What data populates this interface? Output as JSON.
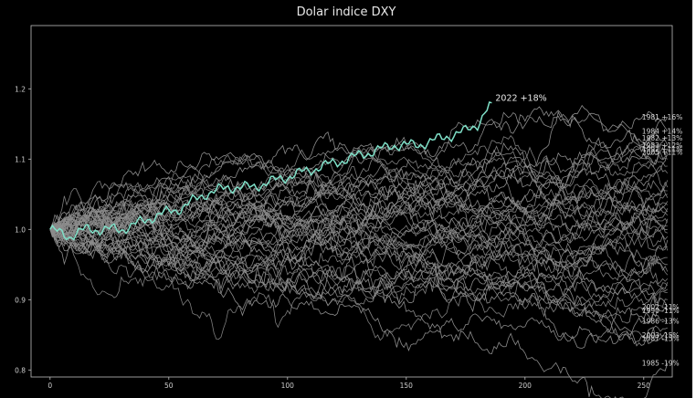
{
  "chart_data": {
    "type": "line",
    "title": "Dolar indice DXY",
    "xlabel": "",
    "ylabel": "",
    "xlim": [
      -8,
      262
    ],
    "ylim": [
      0.79,
      1.29
    ],
    "x_ticks": [
      0,
      50,
      100,
      150,
      200,
      250
    ],
    "y_ticks": [
      0.8,
      0.9,
      1.0,
      1.1,
      1.2
    ],
    "y_tick_labels": [
      "0.8",
      "0.9",
      "1.0",
      "1.1",
      "1.2"
    ],
    "grid": false,
    "background": "#000000",
    "line_color": "#8c8c8c",
    "highlight_color": "#7fe0c8",
    "highlight": {
      "year": "2022",
      "label": "2022   +18%",
      "end_x": 186,
      "end_y": 1.18,
      "anchors": [
        [
          0,
          1.0
        ],
        [
          8,
          0.99
        ],
        [
          15,
          1.0
        ],
        [
          22,
          1.0
        ],
        [
          30,
          1.0
        ],
        [
          38,
          1.01
        ],
        [
          45,
          1.02
        ],
        [
          55,
          1.03
        ],
        [
          65,
          1.05
        ],
        [
          75,
          1.06
        ],
        [
          85,
          1.06
        ],
        [
          95,
          1.07
        ],
        [
          105,
          1.08
        ],
        [
          115,
          1.09
        ],
        [
          125,
          1.1
        ],
        [
          135,
          1.11
        ],
        [
          145,
          1.12
        ],
        [
          155,
          1.12
        ],
        [
          165,
          1.13
        ],
        [
          175,
          1.14
        ],
        [
          180,
          1.15
        ],
        [
          186,
          1.18
        ]
      ]
    },
    "labeled_years": [
      {
        "label": "1981   +16%",
        "year": "1981",
        "end_y": 1.16
      },
      {
        "label": "1984   +14%",
        "year": "1984",
        "end_y": 1.14
      },
      {
        "label": "1982   +13%",
        "year": "1982",
        "end_y": 1.13
      },
      {
        "label": "1983   +12%",
        "year": "1983",
        "end_y": 1.12
      },
      {
        "label": "1997   +11%",
        "year": "1997",
        "end_y": 1.115
      },
      {
        "label": "2005   +11%",
        "year": "2005",
        "end_y": 1.11
      },
      {
        "label": "2002   -11%",
        "year": "2002",
        "end_y": 0.89
      },
      {
        "label": "1990   -11%",
        "year": "1990",
        "end_y": 0.885
      },
      {
        "label": "1986   -13%",
        "year": "1986",
        "end_y": 0.87
      },
      {
        "label": "2003   -15%",
        "year": "2003",
        "end_y": 0.85
      },
      {
        "label": "1987   -15%",
        "year": "1987",
        "end_y": 0.845
      },
      {
        "label": "1985   -19%",
        "year": "1985",
        "end_y": 0.81
      }
    ],
    "unlabeled_end_values": [
      1.1,
      1.09,
      1.08,
      1.07,
      1.06,
      1.055,
      1.05,
      1.045,
      1.04,
      1.035,
      1.03,
      1.025,
      1.02,
      1.015,
      1.01,
      1.005,
      1.0,
      0.995,
      0.99,
      0.985,
      0.96,
      0.95,
      0.94,
      0.935,
      0.93,
      0.925,
      0.92,
      0.915,
      0.91,
      0.9,
      0.86,
      1.12,
      1.105,
      0.97,
      0.975
    ],
    "series_length": 260
  }
}
